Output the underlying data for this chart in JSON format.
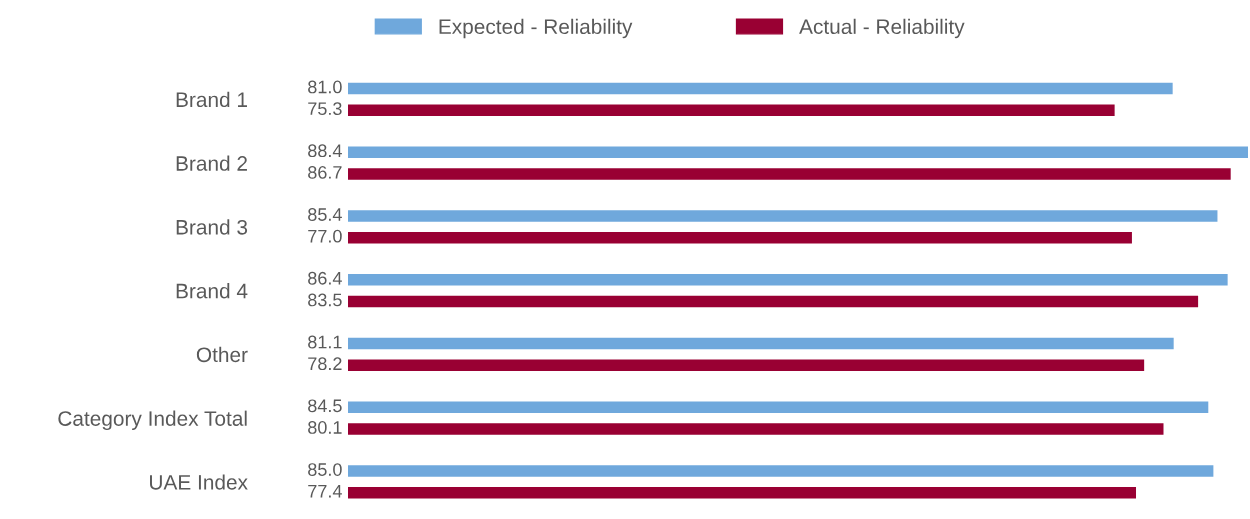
{
  "chart_data": {
    "type": "bar",
    "orientation": "horizontal",
    "categories": [
      "Brand 1",
      "Brand 2",
      "Brand 3",
      "Brand 4",
      "Other",
      "Category Index Total",
      "UAE Index"
    ],
    "series": [
      {
        "name": "Expected - Reliability",
        "color": "#6fa8dc",
        "values": [
          81.0,
          88.4,
          85.4,
          86.4,
          81.1,
          84.5,
          85.0
        ],
        "value_labels": [
          "81.0",
          "88.4",
          "85.4",
          "86.4",
          "81.1",
          "84.5",
          "85.0"
        ]
      },
      {
        "name": "Actual - Reliability",
        "color": "#990033",
        "values": [
          75.3,
          86.7,
          77.0,
          83.5,
          78.2,
          80.1,
          77.4
        ],
        "value_labels": [
          "75.3",
          "86.7",
          "77.0",
          "83.5",
          "78.2",
          "80.1",
          "77.4"
        ]
      }
    ],
    "legend": "top",
    "grid": false
  }
}
